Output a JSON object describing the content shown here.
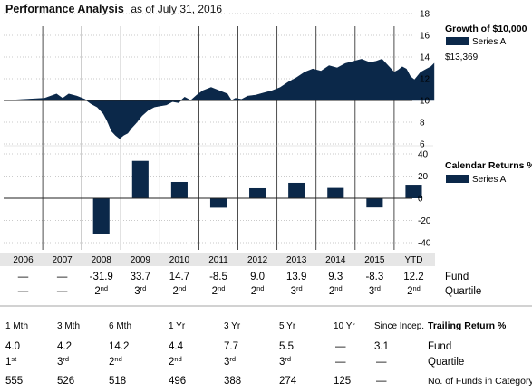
{
  "header": {
    "title": "Performance Analysis",
    "subtitle": "as of July 31, 2016"
  },
  "colors": {
    "navy": "#0b2849",
    "grid": "#b9b9b9",
    "band": "#e6e6e6"
  },
  "growth_panel": {
    "title": "Growth of $10,000",
    "legend": "Series A",
    "end_value": "$13,369"
  },
  "returns_panel": {
    "title": "Calendar Returns %",
    "legend": "Series A"
  },
  "chart_data": [
    {
      "type": "area",
      "title": "Growth of $10,000",
      "series": [
        {
          "name": "Series A"
        }
      ],
      "baseline": 10,
      "ylim": [
        6,
        18
      ],
      "yticks": [
        6,
        8,
        10,
        12,
        14,
        16,
        18
      ],
      "x_period": [
        "2006-01",
        "2016-07"
      ],
      "x": [
        2006.0,
        2006.5,
        2007.0,
        2007.3,
        2007.45,
        2007.6,
        2007.8,
        2008.0,
        2008.15,
        2008.3,
        2008.45,
        2008.55,
        2008.65,
        2008.75,
        2008.85,
        2008.95,
        2009.05,
        2009.15,
        2009.25,
        2009.4,
        2009.55,
        2009.7,
        2009.85,
        2010.0,
        2010.15,
        2010.3,
        2010.45,
        2010.6,
        2010.75,
        2010.9,
        2011.1,
        2011.3,
        2011.5,
        2011.6,
        2011.7,
        2011.85,
        2012.0,
        2012.2,
        2012.4,
        2012.6,
        2012.8,
        2013.0,
        2013.2,
        2013.4,
        2013.6,
        2013.8,
        2014.0,
        2014.2,
        2014.4,
        2014.6,
        2014.8,
        2015.0,
        2015.15,
        2015.3,
        2015.45,
        2015.6,
        2015.7,
        2015.8,
        2015.9,
        2016.0,
        2016.1,
        2016.25,
        2016.4,
        2016.5,
        2016.58
      ],
      "values": [
        10.0,
        10.1,
        10.2,
        10.6,
        10.2,
        10.6,
        10.4,
        10.1,
        9.7,
        9.4,
        8.8,
        8.1,
        7.2,
        6.8,
        6.5,
        6.8,
        7.0,
        7.5,
        7.9,
        8.6,
        9.1,
        9.4,
        9.5,
        9.6,
        9.9,
        9.8,
        10.3,
        10.0,
        10.5,
        10.9,
        11.2,
        10.9,
        10.6,
        10.0,
        10.2,
        10.1,
        10.4,
        10.5,
        10.7,
        10.9,
        11.2,
        11.7,
        12.1,
        12.6,
        12.9,
        12.7,
        13.2,
        13.0,
        13.4,
        13.6,
        13.8,
        13.5,
        13.6,
        13.8,
        13.2,
        12.6,
        12.8,
        13.1,
        12.9,
        12.2,
        11.9,
        12.6,
        12.9,
        13.1,
        13.4
      ]
    },
    {
      "type": "bar",
      "title": "Calendar Returns %",
      "series": [
        {
          "name": "Series A"
        }
      ],
      "categories": [
        "2006",
        "2007",
        "2008",
        "2009",
        "2010",
        "2011",
        "2012",
        "2013",
        "2014",
        "2015",
        "YTD"
      ],
      "values": [
        null,
        null,
        -31.9,
        33.7,
        14.7,
        -8.5,
        9.0,
        13.9,
        9.3,
        -8.3,
        12.2
      ],
      "ylim": [
        -40,
        40
      ],
      "yticks": [
        -40,
        -20,
        0,
        20,
        40
      ]
    }
  ],
  "calendar_table": {
    "years": [
      "2006",
      "2007",
      "2008",
      "2009",
      "2010",
      "2011",
      "2012",
      "2013",
      "2014",
      "2015",
      "YTD"
    ],
    "fund": [
      "—",
      "—",
      "-31.9",
      "33.7",
      "14.7",
      "-8.5",
      "9.0",
      "13.9",
      "9.3",
      "-8.3",
      "12.2"
    ],
    "quartile_num": [
      "—",
      "—",
      "2",
      "3",
      "2",
      "2",
      "2",
      "3",
      "2",
      "3",
      "2"
    ],
    "quartile_suffix": [
      "",
      "",
      "nd",
      "rd",
      "nd",
      "nd",
      "nd",
      "rd",
      "nd",
      "rd",
      "nd"
    ],
    "row_labels": [
      "Fund",
      "Quartile"
    ]
  },
  "trailing": {
    "title": "Trailing Return %",
    "periods": [
      "1 Mth",
      "3 Mth",
      "6 Mth",
      "1 Yr",
      "3 Yr",
      "5 Yr",
      "10 Yr",
      "Since Incep."
    ],
    "fund": [
      "4.0",
      "4.2",
      "14.2",
      "4.4",
      "7.7",
      "5.5",
      "—",
      "3.1"
    ],
    "quartile_num": [
      "1",
      "3",
      "2",
      "2",
      "3",
      "3",
      "—",
      "—"
    ],
    "quartile_suffix": [
      "st",
      "rd",
      "nd",
      "nd",
      "rd",
      "rd",
      "",
      ""
    ],
    "funds_in_category": [
      "555",
      "526",
      "518",
      "496",
      "388",
      "274",
      "125",
      "—"
    ],
    "row_labels": [
      "Fund",
      "Quartile",
      "No. of Funds in Category"
    ]
  }
}
